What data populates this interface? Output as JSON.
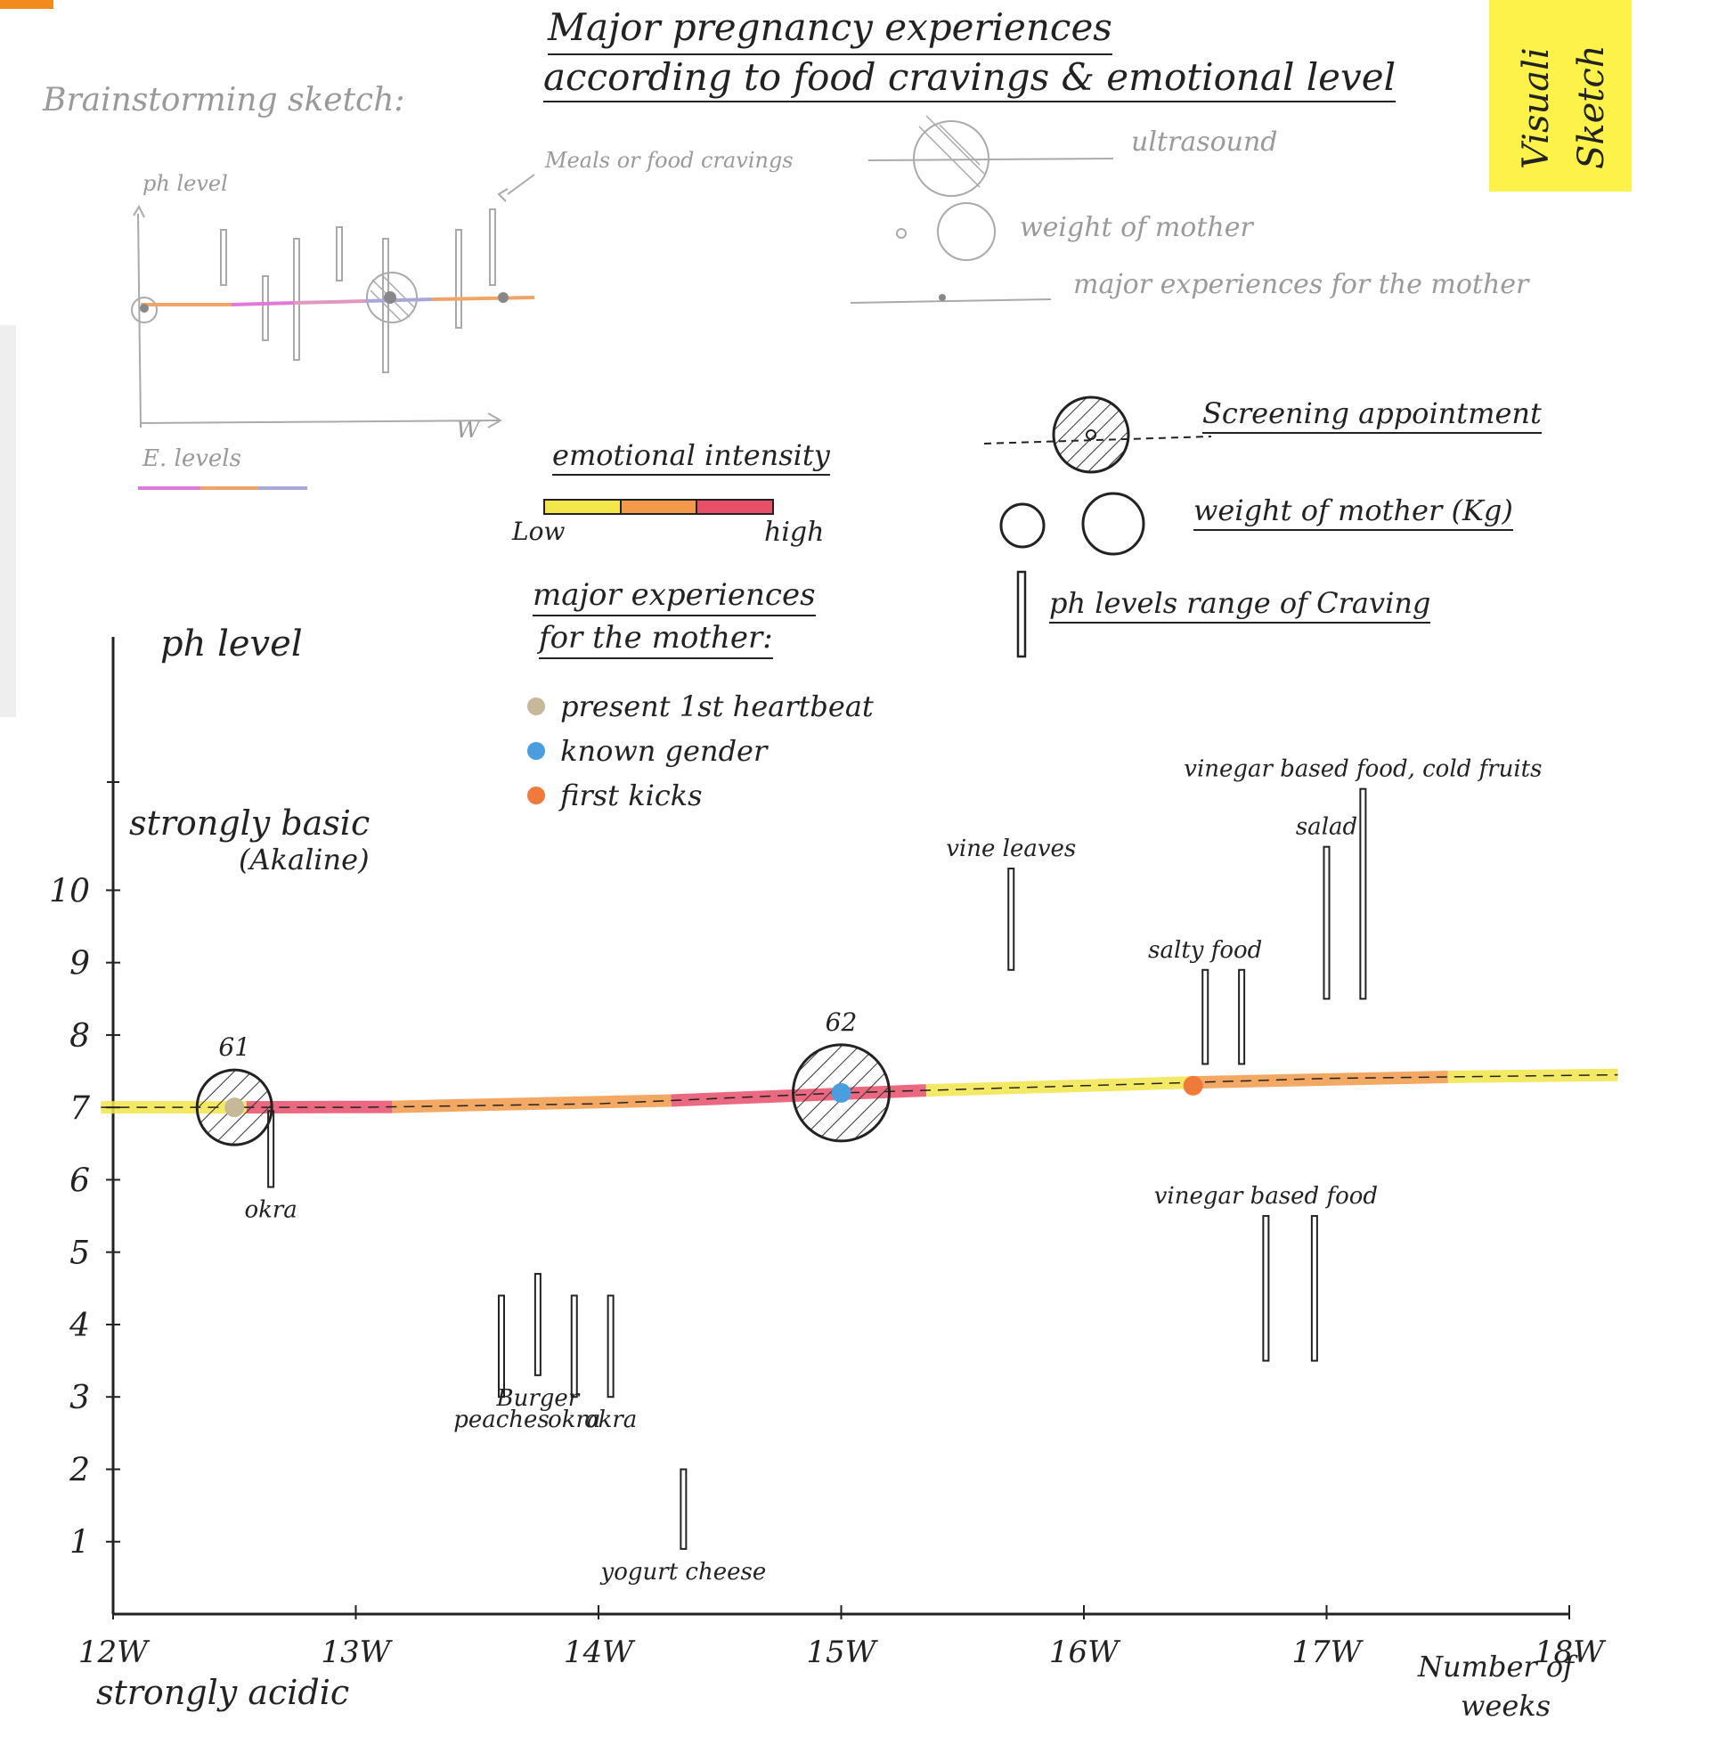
{
  "title_line1": "Major pregnancy experiences",
  "title_line2": "according to food cravings & emotional level",
  "sticky_note": [
    "Visuali",
    "Sketch"
  ],
  "brainstorm": {
    "heading": "Brainstorming sketch:",
    "ph_label": "ph level",
    "meals_label": "Meals or food cravings",
    "x_label": "W",
    "e_levels_label": "E. levels",
    "legend": {
      "ultrasound": "ultrasound",
      "weight": "weight of mother",
      "experiences": "major experiences for the mother"
    }
  },
  "legend": {
    "emotional_intensity": "emotional intensity",
    "low": "Low",
    "high": "high",
    "intensity_colors": [
      "#f2e64a",
      "#f29a4a",
      "#e8506a"
    ],
    "experiences_heading_1": "major experiences",
    "experiences_heading_2": "for the mother:",
    "experiences": [
      {
        "label": "present 1st heartbeat",
        "color": "#c8b89a"
      },
      {
        "label": "known gender",
        "color": "#4a9ee0"
      },
      {
        "label": "first kicks",
        "color": "#f07a3a"
      }
    ],
    "screening": "Screening appointment",
    "weight": "weight of mother (Kg)",
    "ph_range": "ph levels range of Craving"
  },
  "chart_data": {
    "type": "line",
    "y_axis_title": "ph level",
    "y_top_label_1": "strongly basic",
    "y_top_label_2": "(Akaline)",
    "y_bottom_label": "strongly acidic",
    "x_axis_title_1": "Number of",
    "x_axis_title_2": "weeks",
    "x_ticks": [
      {
        "label": "12W",
        "week": 12
      },
      {
        "label": "13W",
        "week": 13
      },
      {
        "label": "14W",
        "week": 14
      },
      {
        "label": "15W",
        "week": 15
      },
      {
        "label": "16W",
        "week": 16
      },
      {
        "label": "17W",
        "week": 17
      },
      {
        "label": "18W",
        "week": 18
      }
    ],
    "y_ticks": [
      1,
      2,
      3,
      4,
      5,
      6,
      7,
      8,
      9,
      10
    ],
    "xlim": [
      12,
      18
    ],
    "ylim": [
      0,
      13.5
    ],
    "emotional_line": {
      "points": [
        [
          11.95,
          7.0
        ],
        [
          13.0,
          7.0
        ],
        [
          14.0,
          7.05
        ],
        [
          15.0,
          7.2
        ],
        [
          16.0,
          7.3
        ],
        [
          17.0,
          7.4
        ],
        [
          18.2,
          7.45
        ]
      ],
      "segments": [
        {
          "x0": 11.95,
          "x1": 12.55,
          "color": "#f2e64a"
        },
        {
          "x0": 12.55,
          "x1": 13.15,
          "color": "#e8506a"
        },
        {
          "x0": 13.15,
          "x1": 14.3,
          "color": "#f29a4a"
        },
        {
          "x0": 14.3,
          "x1": 15.35,
          "color": "#e8506a"
        },
        {
          "x0": 15.35,
          "x1": 16.45,
          "color": "#f2e64a"
        },
        {
          "x0": 16.45,
          "x1": 17.5,
          "color": "#f29a4a"
        },
        {
          "x0": 17.5,
          "x1": 18.2,
          "color": "#f2e64a"
        }
      ]
    },
    "screenings": [
      {
        "week": 12.5,
        "ph": 7.0,
        "weight_label": "61",
        "weight_kg": 61
      },
      {
        "week": 15.0,
        "ph": 7.2,
        "weight_label": "62",
        "weight_kg": 62
      }
    ],
    "experience_points": [
      {
        "week": 12.5,
        "ph": 7.0,
        "color": "#c8b89a"
      },
      {
        "week": 15.0,
        "ph": 7.2,
        "color": "#4a9ee0"
      },
      {
        "week": 16.45,
        "ph": 7.3,
        "color": "#f07a3a"
      }
    ],
    "cravings": [
      {
        "week": 12.65,
        "low": 5.9,
        "high": 6.95,
        "label": "okra"
      },
      {
        "week": 13.6,
        "low": 3.0,
        "high": 4.4,
        "label": "peaches"
      },
      {
        "week": 13.75,
        "low": 3.3,
        "high": 4.7,
        "label": "Burger"
      },
      {
        "week": 13.9,
        "low": 3.0,
        "high": 4.4,
        "label": "okra"
      },
      {
        "week": 14.05,
        "low": 3.0,
        "high": 4.4,
        "label": "okra"
      },
      {
        "week": 14.35,
        "low": 0.9,
        "high": 2.0,
        "label": "yogurt cheese"
      },
      {
        "week": 15.7,
        "low": 8.9,
        "high": 10.3,
        "label": "vine leaves"
      },
      {
        "week": 16.5,
        "low": 7.6,
        "high": 8.9,
        "label": "salty food"
      },
      {
        "week": 16.65,
        "low": 7.6,
        "high": 8.9,
        "label": ""
      },
      {
        "week": 16.75,
        "low": 3.5,
        "high": 5.5,
        "label": "vinegar based food"
      },
      {
        "week": 16.95,
        "low": 3.5,
        "high": 5.5,
        "label": ""
      },
      {
        "week": 17.0,
        "low": 8.5,
        "high": 10.6,
        "label": "salad"
      },
      {
        "week": 17.15,
        "low": 8.5,
        "high": 11.4,
        "label": "vinegar based food, cold fruits"
      }
    ]
  }
}
